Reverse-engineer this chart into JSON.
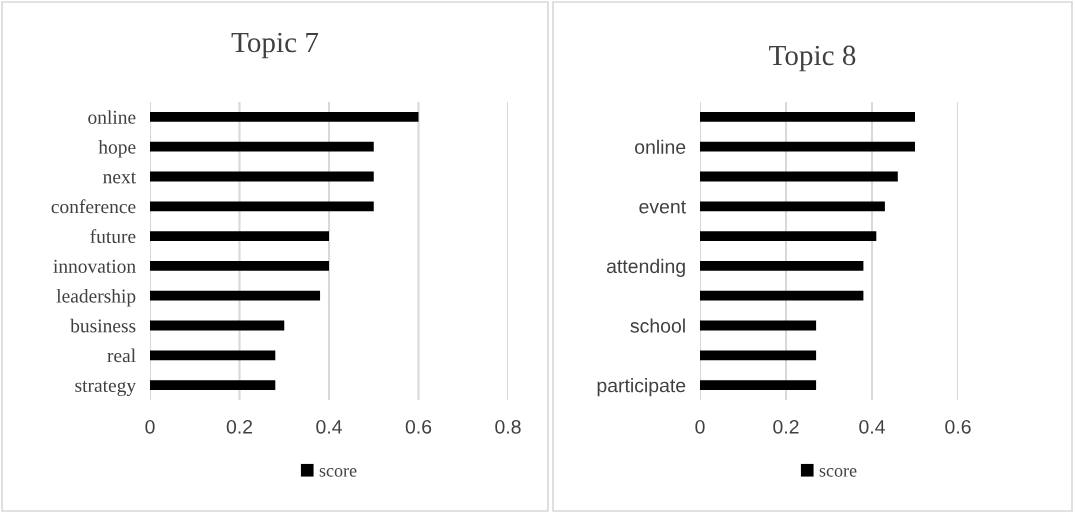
{
  "chart_data": [
    {
      "type": "bar",
      "title": "Topic 7",
      "orientation": "horizontal",
      "categories": [
        "online",
        "hope",
        "next",
        "conference",
        "future",
        "innovation",
        "leadership",
        "business",
        "real",
        "strategy"
      ],
      "series": [
        {
          "name": "score",
          "color": "#000000",
          "values": [
            0.6,
            0.5,
            0.5,
            0.5,
            0.4,
            0.4,
            0.38,
            0.3,
            0.28,
            0.28
          ]
        }
      ],
      "xlim": [
        0,
        0.8
      ],
      "xticks": [
        0,
        0.2,
        0.4,
        0.6,
        0.8
      ],
      "grid": "x",
      "legend": "bottom"
    },
    {
      "type": "bar",
      "title": "Topic 8",
      "orientation": "horizontal",
      "categories": [
        null,
        "online",
        null,
        "event",
        null,
        "attending",
        null,
        "school",
        null,
        "participate"
      ],
      "series": [
        {
          "name": "score",
          "color": "#000000",
          "values": [
            0.5,
            0.5,
            0.46,
            0.43,
            0.41,
            0.38,
            0.38,
            0.27,
            0.27,
            0.27
          ]
        }
      ],
      "xlim": [
        0,
        0.6
      ],
      "xticks": [
        0,
        0.2,
        0.4,
        0.6
      ],
      "grid": "x",
      "legend": "bottom"
    }
  ]
}
